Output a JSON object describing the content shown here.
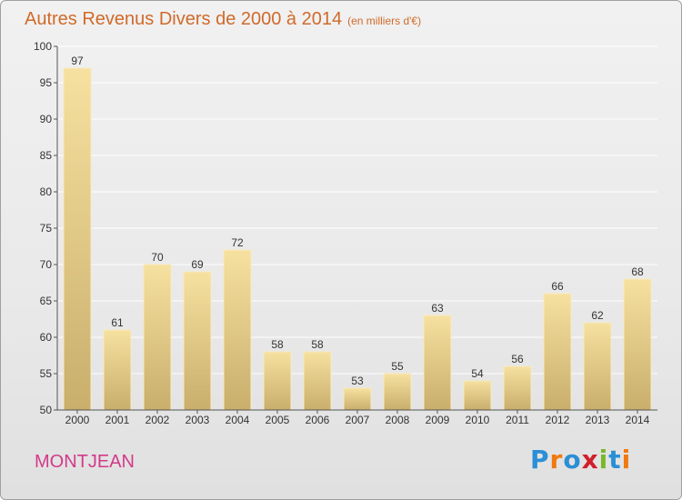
{
  "page": {
    "title": "Autres Revenus Divers de 2000 à 2014",
    "title_unit": "(en milliers d'€)",
    "place_name": "MONTJEAN",
    "logo": {
      "text": "Proxiti",
      "letters": [
        "P",
        "r",
        "o",
        "x",
        "i",
        "t",
        "i"
      ],
      "letter_colors": [
        "#2a8fd6",
        "#f07a10",
        "#2a8fd6",
        "#d0202a",
        "#78b82a",
        "#2a8fd6",
        "#f07a10"
      ]
    }
  },
  "chart_data": {
    "type": "bar",
    "title": "Autres Revenus Divers de 2000 à 2014",
    "xlabel": "",
    "ylabel": "",
    "categories": [
      "2000",
      "2001",
      "2002",
      "2003",
      "2004",
      "2005",
      "2006",
      "2007",
      "2008",
      "2009",
      "2010",
      "2011",
      "2012",
      "2013",
      "2014"
    ],
    "values": [
      97,
      61,
      70,
      69,
      72,
      58,
      58,
      53,
      55,
      63,
      54,
      56,
      66,
      62,
      68
    ],
    "ylim": [
      50,
      100
    ],
    "yticks": [
      50,
      55,
      60,
      65,
      70,
      75,
      80,
      85,
      90,
      95,
      100
    ],
    "grid": true,
    "colors": {
      "bar_top": "#f6e1a0",
      "bar_bottom": "#c9ae6c",
      "bar_edge": "#f8eac0",
      "grid": "#ffffff",
      "axis": "#555555"
    }
  }
}
